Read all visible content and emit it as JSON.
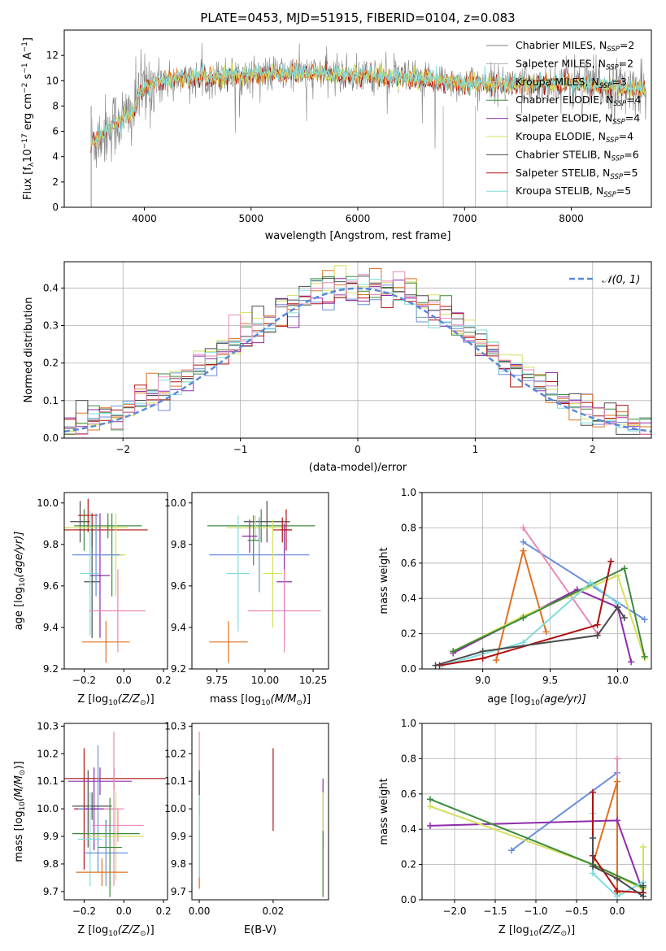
{
  "colors": {
    "chabrier_miles": "#808080",
    "salpeter_miles": "#b0b0b0",
    "kroupa_miles": "#c8c8c8",
    "chabrier_elodie": "#3c8a3c",
    "salpeter_elodie": "#8e2bab",
    "kroupa_elodie": "#d4e05c",
    "chabrier_stelib": "#4a4a4a",
    "salpeter_stelib": "#b01010",
    "kroupa_stelib": "#7fdcdc",
    "blue": "#6a8fdc",
    "orange": "#e07020",
    "pink": "#e888b8",
    "gaussian": "#5b8ad8"
  },
  "chart_data": [
    {
      "type": "line",
      "title": "PLATE=0453, MJD=51915, FIBERID=0104, z=0.083",
      "xlabel": "wavelength [Angstrom, rest frame]",
      "ylabel_main": "Flux [f",
      "ylabel_sub": "λ",
      "ylabel_mid": "10",
      "ylabel_sup": "−17",
      "ylabel_end": " erg cm",
      "ylabel_sup2": "−2",
      "ylabel_end2": " s",
      "ylabel_sup3": "−1",
      "ylabel_end3": " A",
      "ylabel_sup4": "−1",
      "ylabel_close": "]",
      "xlim": [
        3250,
        8750
      ],
      "ylim": [
        0,
        14
      ],
      "xticks": [
        4000,
        5000,
        6000,
        7000,
        8000
      ],
      "yticks": [
        0,
        2,
        4,
        6,
        8,
        10,
        12
      ],
      "legend_placement": "right",
      "legend": [
        {
          "prefix": "Chabrier MILES, N",
          "sub": "SSP",
          "suffix": "=2",
          "color_key": "chabrier_miles"
        },
        {
          "prefix": "Salpeter MILES, N",
          "sub": "SSP",
          "suffix": "=2",
          "color_key": "salpeter_miles"
        },
        {
          "prefix": "Kroupa MILES, N",
          "sub": "SSP",
          "suffix": "=3",
          "color_key": "kroupa_miles"
        },
        {
          "prefix": "Chabrier ELODIE, N",
          "sub": "SSP",
          "suffix": "=4",
          "color_key": "chabrier_elodie"
        },
        {
          "prefix": "Salpeter ELODIE, N",
          "sub": "SSP",
          "suffix": "=4",
          "color_key": "salpeter_elodie"
        },
        {
          "prefix": "Kroupa ELODIE, N",
          "sub": "SSP",
          "suffix": "=4",
          "color_key": "kroupa_elodie"
        },
        {
          "prefix": "Chabrier STELIB, N",
          "sub": "SSP",
          "suffix": "=6",
          "color_key": "chabrier_stelib"
        },
        {
          "prefix": "Salpeter STELIB, N",
          "sub": "SSP",
          "suffix": "=5",
          "color_key": "salpeter_stelib"
        },
        {
          "prefix": "Kroupa STELIB, N",
          "sub": "SSP",
          "suffix": "=5",
          "color_key": "kroupa_stelib"
        }
      ],
      "continuum": [
        [
          3500,
          5.0
        ],
        [
          3700,
          6.5
        ],
        [
          3900,
          7.5
        ],
        [
          3950,
          9.0
        ],
        [
          4100,
          10.0
        ],
        [
          4500,
          10.2
        ],
        [
          5000,
          10.5
        ],
        [
          5500,
          10.6
        ],
        [
          6000,
          10.4
        ],
        [
          6500,
          10.2
        ],
        [
          7000,
          9.8
        ],
        [
          7500,
          9.8
        ],
        [
          8000,
          9.8
        ],
        [
          8500,
          9.4
        ]
      ]
    },
    {
      "type": "step",
      "xlabel": "(data-model)/error",
      "ylabel": "Normed distribution",
      "xlim": [
        -2.5,
        2.5
      ],
      "ylim": [
        0,
        0.47
      ],
      "xticks": [
        -2,
        -1,
        0,
        1,
        2
      ],
      "yticks": [
        0.0,
        0.1,
        0.2,
        0.3,
        0.4
      ],
      "gaussian_label": "𝒩(0, 1)",
      "gaussian": {
        "mean": 0,
        "sigma": 1
      },
      "bin_width": 0.1,
      "bin_start": -2.5
    },
    {
      "type": "scatter",
      "xlabel_main": "Z [log",
      "xlabel_sub": "10",
      "xlabel_end": "(Z/Z",
      "xlabel_sun": "⊙",
      "xlabel_close": ")]",
      "ylabel": "age  [log₁₀(age/yr)]",
      "xlim": [
        -0.3,
        0.22
      ],
      "ylim": [
        9.2,
        10.05
      ],
      "xticks": [
        -0.2,
        0.0,
        0.2
      ],
      "yticks": [
        9.2,
        9.4,
        9.6,
        9.8,
        10.0
      ],
      "points": [
        {
          "x": -0.22,
          "y": 9.91,
          "xerr": 0.05,
          "yerr": 0.1,
          "color_key": "chabrier_stelib"
        },
        {
          "x": -0.2,
          "y": 9.87,
          "xerr": 0.05,
          "yerr": 0.1,
          "color_key": "chabrier_elodie"
        },
        {
          "x": -0.18,
          "y": 9.94,
          "xerr": 0.05,
          "yerr": 0.08,
          "color_key": "salpeter_stelib"
        },
        {
          "x": -0.16,
          "y": 9.87,
          "xerr": 0.28,
          "yerr": 0.08,
          "color_key": "salpeter_stelib"
        },
        {
          "x": -0.16,
          "y": 9.62,
          "xerr": 0.04,
          "yerr": 0.27,
          "color_key": "chabrier_stelib"
        },
        {
          "x": -0.14,
          "y": 9.88,
          "xerr": 0.16,
          "yerr": 0.06,
          "color_key": "kroupa_elodie"
        },
        {
          "x": -0.12,
          "y": 9.65,
          "xerr": 0.05,
          "yerr": 0.3,
          "color_key": "salpeter_elodie"
        },
        {
          "x": -0.08,
          "y": 9.89,
          "xerr": 0.17,
          "yerr": 0.06,
          "color_key": "chabrier_elodie"
        },
        {
          "x": -0.06,
          "y": 9.75,
          "xerr": 0.05,
          "yerr": 0.2,
          "color_key": "chabrier_elodie"
        },
        {
          "x": -0.04,
          "y": 9.75,
          "xerr": 0.05,
          "yerr": 0.2,
          "color_key": "kroupa_elodie"
        },
        {
          "x": -0.14,
          "y": 9.75,
          "xerr": 0.12,
          "yerr": 0.2,
          "color_key": "blue"
        },
        {
          "x": -0.17,
          "y": 9.66,
          "xerr": 0.05,
          "yerr": 0.3,
          "color_key": "kroupa_stelib"
        },
        {
          "x": -0.03,
          "y": 9.48,
          "xerr": 0.14,
          "yerr": 0.2,
          "color_key": "pink"
        },
        {
          "x": -0.09,
          "y": 9.33,
          "xerr": 0.12,
          "yerr": 0.1,
          "color_key": "orange"
        }
      ]
    },
    {
      "type": "scatter",
      "xlabel_main": "mass [log",
      "xlabel_sub": "10",
      "xlabel_end": "(M/M",
      "xlabel_sun": "⊙",
      "xlabel_close": ")]",
      "ylabel": "",
      "xlim": [
        9.62,
        10.33
      ],
      "ylim": [
        9.2,
        10.05
      ],
      "xticks": [
        9.75,
        10.0,
        10.25
      ],
      "yticks": [
        9.2,
        9.4,
        9.6,
        9.8,
        10.0
      ],
      "points": [
        {
          "x": 9.98,
          "y": 9.89,
          "xerr": 0.28,
          "yerr": 0.08,
          "color_key": "chabrier_elodie"
        },
        {
          "x": 10.01,
          "y": 9.91,
          "xerr": 0.12,
          "yerr": 0.1,
          "color_key": "chabrier_stelib"
        },
        {
          "x": 9.95,
          "y": 9.88,
          "xerr": 0.15,
          "yerr": 0.06,
          "color_key": "kroupa_elodie"
        },
        {
          "x": 10.09,
          "y": 9.87,
          "xerr": 0.05,
          "yerr": 0.06,
          "color_key": "salpeter_stelib"
        },
        {
          "x": 10.1,
          "y": 9.62,
          "xerr": 0.04,
          "yerr": 0.28,
          "color_key": "salpeter_elodie"
        },
        {
          "x": 10.11,
          "y": 9.87,
          "xerr": 0.03,
          "yerr": 0.1,
          "color_key": "salpeter_stelib"
        },
        {
          "x": 9.92,
          "y": 9.84,
          "xerr": 0.04,
          "yerr": 0.08,
          "color_key": "salpeter_elodie"
        },
        {
          "x": 9.94,
          "y": 9.82,
          "xerr": 0.03,
          "yerr": 0.12,
          "color_key": "chabrier_elodie"
        },
        {
          "x": 9.97,
          "y": 9.75,
          "xerr": 0.26,
          "yerr": 0.18,
          "color_key": "blue"
        },
        {
          "x": 9.86,
          "y": 9.66,
          "xerr": 0.06,
          "yerr": 0.28,
          "color_key": "kroupa_stelib"
        },
        {
          "x": 10.04,
          "y": 9.66,
          "xerr": 0.05,
          "yerr": 0.26,
          "color_key": "kroupa_elodie"
        },
        {
          "x": 10.1,
          "y": 9.48,
          "xerr": 0.19,
          "yerr": 0.2,
          "color_key": "pink"
        },
        {
          "x": 9.81,
          "y": 9.33,
          "xerr": 0.1,
          "yerr": 0.1,
          "color_key": "orange"
        }
      ]
    },
    {
      "type": "line",
      "xlabel_main": "age  [log",
      "xlabel_sub": "10",
      "xlabel_end": "(age/yr)]",
      "ylabel": "mass weight",
      "xlim": [
        8.55,
        10.25
      ],
      "ylim": [
        0,
        1.0
      ],
      "xticks": [
        9.0,
        9.5,
        10.0
      ],
      "yticks": [
        0.0,
        0.2,
        0.4,
        0.6,
        0.8,
        1.0
      ],
      "series": [
        {
          "color_key": "blue",
          "points": [
            [
              9.3,
              0.72
            ],
            [
              10.2,
              0.28
            ]
          ]
        },
        {
          "color_key": "pink",
          "points": [
            [
              9.3,
              0.8
            ],
            [
              9.85,
              0.2
            ]
          ]
        },
        {
          "color_key": "orange",
          "points": [
            [
              9.1,
              0.05
            ],
            [
              9.3,
              0.67
            ],
            [
              9.47,
              0.21
            ]
          ]
        },
        {
          "color_key": "salpeter_elodie",
          "points": [
            [
              8.78,
              0.09
            ],
            [
              9.7,
              0.45
            ],
            [
              10.0,
              0.35
            ],
            [
              10.1,
              0.04
            ]
          ]
        },
        {
          "color_key": "kroupa_elodie",
          "points": [
            [
              8.78,
              0.1
            ],
            [
              9.3,
              0.3
            ],
            [
              10.0,
              0.53
            ],
            [
              10.2,
              0.06
            ]
          ]
        },
        {
          "color_key": "chabrier_elodie",
          "points": [
            [
              8.78,
              0.1
            ],
            [
              9.3,
              0.29
            ],
            [
              10.05,
              0.57
            ],
            [
              10.2,
              0.07
            ]
          ]
        },
        {
          "color_key": "kroupa_stelib",
          "points": [
            [
              8.7,
              0.02
            ],
            [
              9.3,
              0.15
            ],
            [
              9.8,
              0.49
            ],
            [
              10.0,
              0.37
            ]
          ]
        },
        {
          "color_key": "salpeter_stelib",
          "points": [
            [
              8.68,
              0.02
            ],
            [
              9.0,
              0.06
            ],
            [
              9.85,
              0.25
            ],
            [
              9.95,
              0.61
            ]
          ]
        },
        {
          "color_key": "chabrier_stelib",
          "points": [
            [
              8.65,
              0.02
            ],
            [
              9.0,
              0.1
            ],
            [
              9.85,
              0.19
            ],
            [
              10.0,
              0.35
            ],
            [
              10.05,
              0.29
            ]
          ]
        }
      ]
    },
    {
      "type": "errorbar",
      "xlabel_main": "Z [log",
      "xlabel_sub": "10",
      "xlabel_end": "(Z/Z",
      "xlabel_sun": "⊙",
      "xlabel_close": ")]",
      "ylabel": "mass [log₁₀(M/M⊙)]",
      "xlim": [
        -0.3,
        0.22
      ],
      "ylim": [
        9.67,
        10.31
      ],
      "xticks": [
        -0.2,
        0.0,
        0.2
      ],
      "yticks": [
        9.7,
        9.8,
        9.9,
        10.0,
        10.1,
        10.2,
        10.3
      ],
      "points": [
        {
          "x": -0.2,
          "y": 10.0,
          "xerr": 0.05,
          "yerr": 0.22,
          "color_key": "salpeter_stelib"
        },
        {
          "x": -0.18,
          "y": 10.0,
          "xerr": 0.04,
          "yerr": 0.14,
          "color_key": "chabrier_stelib"
        },
        {
          "x": -0.05,
          "y": 10.11,
          "xerr": 0.26,
          "yerr": 0.04,
          "color_key": "salpeter_stelib"
        },
        {
          "x": -0.12,
          "y": 10.1,
          "xerr": 0.16,
          "yerr": 0.05,
          "color_key": "salpeter_elodie"
        },
        {
          "x": -0.13,
          "y": 10.0,
          "xerr": 0.1,
          "yerr": 0.23,
          "color_key": "blue"
        },
        {
          "x": -0.15,
          "y": 10.0,
          "xerr": 0.05,
          "yerr": 0.15,
          "color_key": "salpeter_elodie"
        },
        {
          "x": -0.16,
          "y": 10.01,
          "xerr": 0.1,
          "yerr": 0.05,
          "color_key": "chabrier_stelib"
        },
        {
          "x": -0.05,
          "y": 10.0,
          "xerr": 0.05,
          "yerr": 0.28,
          "color_key": "pink"
        },
        {
          "x": -0.03,
          "y": 9.94,
          "xerr": 0.13,
          "yerr": 0.06,
          "color_key": "pink"
        },
        {
          "x": -0.09,
          "y": 9.91,
          "xerr": 0.17,
          "yerr": 0.05,
          "color_key": "chabrier_elodie"
        },
        {
          "x": -0.04,
          "y": 9.9,
          "xerr": 0.14,
          "yerr": 0.16,
          "color_key": "kroupa_elodie"
        },
        {
          "x": -0.17,
          "y": 9.89,
          "xerr": 0.06,
          "yerr": 0.17,
          "color_key": "kroupa_stelib"
        },
        {
          "x": -0.09,
          "y": 9.84,
          "xerr": 0.11,
          "yerr": 0.12,
          "color_key": "blue"
        },
        {
          "x": -0.07,
          "y": 9.86,
          "xerr": 0.06,
          "yerr": 0.18,
          "color_key": "chabrier_elodie"
        },
        {
          "x": -0.11,
          "y": 9.77,
          "xerr": 0.13,
          "yerr": 0.05,
          "color_key": "orange"
        }
      ]
    },
    {
      "type": "errorbar",
      "xlabel": "E(B-V)",
      "ylabel": "",
      "xlim": [
        -0.002,
        0.035
      ],
      "ylim": [
        9.67,
        10.31
      ],
      "xticks": [
        0.0,
        0.02
      ],
      "xtick_labels": [
        "0.00",
        "0.02"
      ],
      "yticks": [
        9.7,
        9.8,
        9.9,
        10.0,
        10.1,
        10.2,
        10.3
      ],
      "points": [
        {
          "x": 0.0,
          "y": 10.0,
          "yerr": 0.28,
          "color_key": "pink"
        },
        {
          "x": 0.0,
          "y": 10.06,
          "yerr": 0.08,
          "color_key": "chabrier_stelib"
        },
        {
          "x": 0.0,
          "y": 9.85,
          "yerr": 0.14,
          "color_key": "orange"
        },
        {
          "x": 0.0,
          "y": 9.9,
          "yerr": 0.15,
          "color_key": "kroupa_stelib"
        },
        {
          "x": 0.02,
          "y": 10.07,
          "yerr": 0.15,
          "color_key": "salpeter_stelib"
        },
        {
          "x": 0.0335,
          "y": 9.98,
          "yerr": 0.13,
          "color_key": "salpeter_elodie"
        },
        {
          "x": 0.0335,
          "y": 9.87,
          "yerr": 0.19,
          "color_key": "kroupa_elodie"
        },
        {
          "x": 0.0335,
          "y": 9.8,
          "yerr": 0.12,
          "color_key": "chabrier_elodie"
        }
      ]
    },
    {
      "type": "line",
      "xlabel_main": "Z [log",
      "xlabel_sub": "10",
      "xlabel_end": "(Z/Z",
      "xlabel_sun": "⊙",
      "xlabel_close": ")]",
      "ylabel": "mass weight",
      "xlim": [
        -2.4,
        0.42
      ],
      "ylim": [
        0,
        1.0
      ],
      "xticks": [
        -2.0,
        -1.5,
        -1.0,
        -0.5,
        0.0
      ],
      "yticks": [
        0.0,
        0.2,
        0.4,
        0.6,
        0.8,
        1.0
      ],
      "series": [
        {
          "color_key": "blue",
          "points": [
            [
              -1.3,
              0.28
            ],
            [
              0.0,
              0.72
            ]
          ]
        },
        {
          "color_key": "pink",
          "points": [
            [
              0.0,
              0.8
            ],
            [
              0.0,
              0.02
            ]
          ]
        },
        {
          "color_key": "orange",
          "points": [
            [
              -0.3,
              0.2
            ],
            [
              0.0,
              0.67
            ],
            [
              0.0,
              0.04
            ]
          ]
        },
        {
          "color_key": "salpeter_elodie",
          "points": [
            [
              -2.3,
              0.42
            ],
            [
              0.0,
              0.45
            ],
            [
              0.32,
              0.04
            ]
          ]
        },
        {
          "color_key": "kroupa_elodie",
          "points": [
            [
              -2.3,
              0.53
            ],
            [
              -0.3,
              0.2
            ],
            [
              0.32,
              0.06
            ],
            [
              0.32,
              0.3
            ]
          ]
        },
        {
          "color_key": "chabrier_elodie",
          "points": [
            [
              -2.3,
              0.57
            ],
            [
              -0.3,
              0.2
            ],
            [
              0.32,
              0.07
            ]
          ]
        },
        {
          "color_key": "kroupa_stelib",
          "points": [
            [
              -0.3,
              0.49
            ],
            [
              -0.3,
              0.15
            ],
            [
              0.0,
              0.02
            ],
            [
              0.32,
              0.1
            ]
          ]
        },
        {
          "color_key": "salpeter_stelib",
          "points": [
            [
              -0.3,
              0.61
            ],
            [
              -0.3,
              0.25
            ],
            [
              0.0,
              0.05
            ],
            [
              0.32,
              0.04
            ]
          ]
        },
        {
          "color_key": "chabrier_stelib",
          "points": [
            [
              -0.3,
              0.35
            ],
            [
              -0.3,
              0.19
            ],
            [
              0.0,
              0.12
            ],
            [
              0.32,
              0.02
            ],
            [
              0.32,
              0.08
            ]
          ]
        }
      ]
    }
  ]
}
